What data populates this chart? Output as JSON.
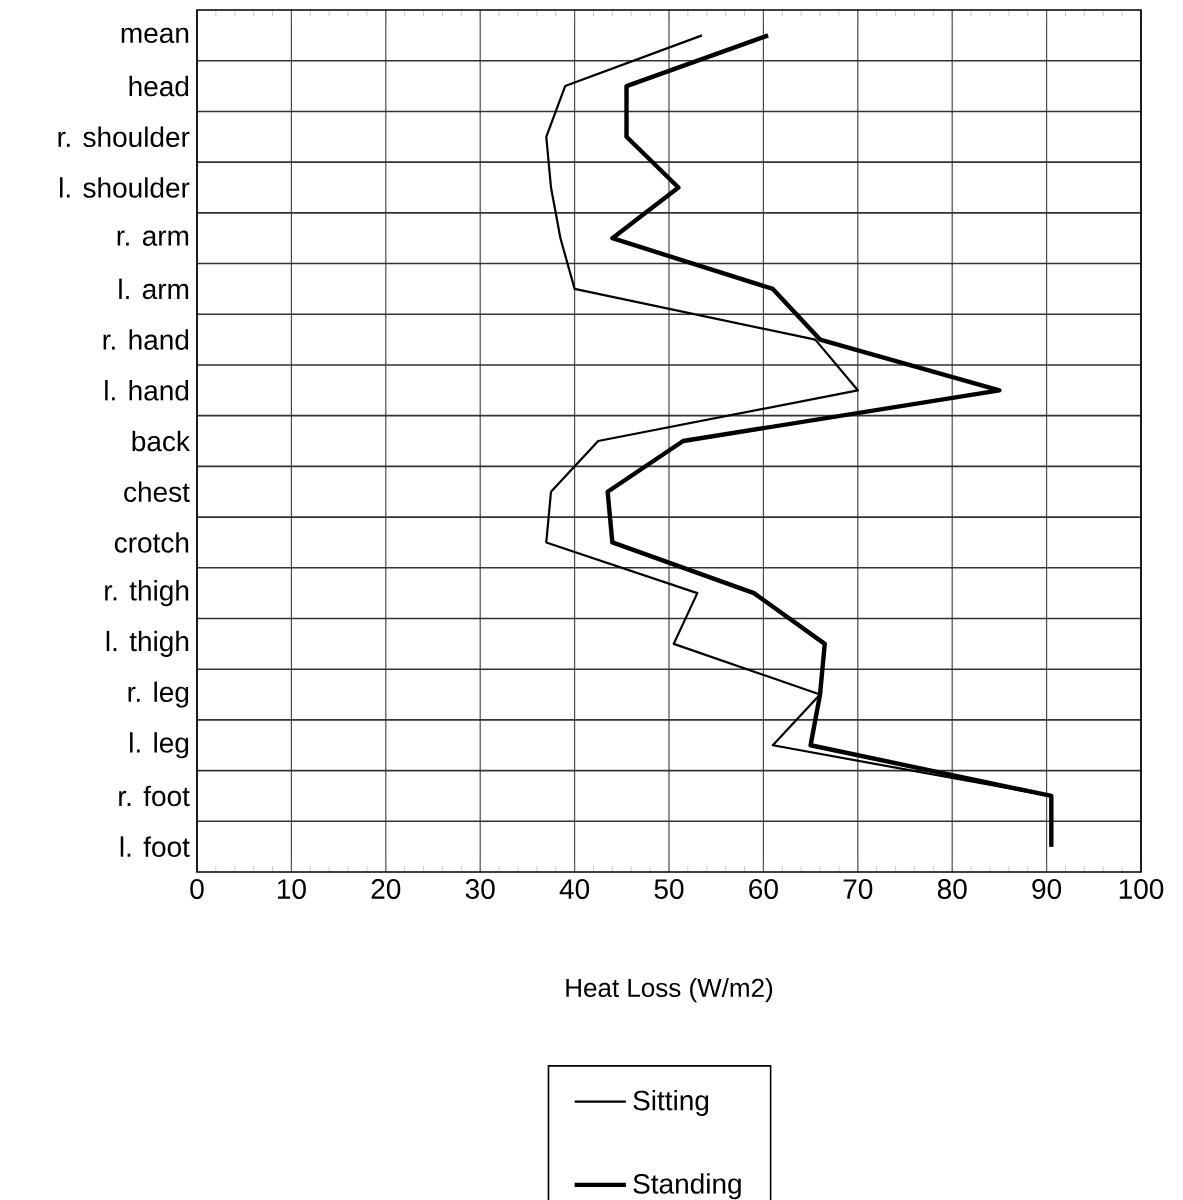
{
  "chart_data": {
    "type": "line",
    "orientation": "horizontal",
    "xlabel": "Heat Loss (W/m2)",
    "categories": [
      "mean",
      "head",
      "r. shoulder",
      "l. shoulder",
      "r. arm",
      "l. arm",
      "r. hand",
      "l. hand",
      "back",
      "chest",
      "crotch",
      "r. thigh",
      "l. thigh",
      "r. leg",
      "l. leg",
      "r. foot",
      "l. foot"
    ],
    "series": [
      {
        "name": "Sitting",
        "color": "#000000",
        "values": [
          53.5,
          39,
          37,
          37.5,
          38.5,
          40,
          65.5,
          70,
          42.5,
          37.5,
          37,
          53,
          50.5,
          66,
          61,
          90.5,
          90.5
        ]
      },
      {
        "name": "Standing",
        "color": "#000000",
        "values": [
          60.5,
          45.5,
          45.5,
          51,
          44,
          61,
          66,
          85,
          51.5,
          43.5,
          44,
          59,
          66.5,
          66,
          65,
          90.5,
          90.5
        ]
      }
    ],
    "xlim": [
      0,
      100
    ],
    "xticks": [
      0,
      10,
      20,
      30,
      40,
      50,
      60,
      70,
      80,
      90,
      100
    ],
    "grid": true,
    "legend": "bottom",
    "marker": "none",
    "line_style": "solid"
  }
}
